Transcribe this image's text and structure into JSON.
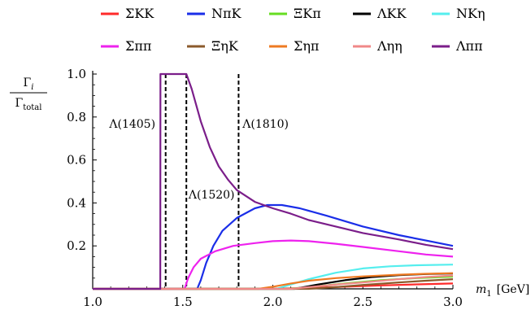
{
  "chart_data": {
    "type": "line",
    "title": "",
    "xlabel": "m_1 [GeV]",
    "xlabel_parts": {
      "var": "m",
      "sub": "1",
      "unit": "[GeV]"
    },
    "ylabel": "Γ_i / Γ_total",
    "ylabel_parts": {
      "num": "Γ",
      "num_sub": "i",
      "den": "Γ",
      "den_sub": "total"
    },
    "xlim": [
      1.0,
      3.0
    ],
    "ylim": [
      0.0,
      1.0
    ],
    "xticks": [
      1.0,
      1.5,
      2.0,
      2.5,
      3.0
    ],
    "xtick_labels": [
      "1.0",
      "1.5",
      "2.0",
      "2.5",
      "3.0"
    ],
    "yticks": [
      0.2,
      0.4,
      0.6,
      0.8,
      1.0
    ],
    "ytick_labels": [
      "0.2",
      "0.4",
      "0.6",
      "0.8",
      "1.0"
    ],
    "grid": false,
    "legend_placement": "top",
    "vlines": [
      {
        "x": 1.405,
        "style": "dashed",
        "color": "#000000"
      },
      {
        "x": 1.52,
        "style": "dashed",
        "color": "#000000"
      },
      {
        "x": 1.81,
        "style": "dashed",
        "color": "#000000"
      }
    ],
    "annotations": [
      {
        "text": "Λ(1405)",
        "x": 1.22,
        "y": 0.75
      },
      {
        "text": "Λ(1810)",
        "x": 1.96,
        "y": 0.75
      },
      {
        "text": "Λ(1520)",
        "x": 1.66,
        "y": 0.42
      }
    ],
    "series": [
      {
        "name": "ΣKK",
        "color": "#ff2a2a",
        "x": [
          1.0,
          2.0,
          2.2,
          2.4,
          2.6,
          2.8,
          3.0
        ],
        "y": [
          0,
          0,
          0.004,
          0.01,
          0.016,
          0.021,
          0.025
        ]
      },
      {
        "name": "NπK",
        "color": "#1a2ee8",
        "x": [
          1.0,
          1.58,
          1.6,
          1.63,
          1.67,
          1.72,
          1.8,
          1.9,
          1.97,
          2.05,
          2.15,
          2.3,
          2.5,
          2.7,
          2.85,
          3.0
        ],
        "y": [
          0,
          0,
          0.04,
          0.12,
          0.2,
          0.27,
          0.33,
          0.375,
          0.39,
          0.39,
          0.375,
          0.34,
          0.29,
          0.25,
          0.225,
          0.2
        ]
      },
      {
        "name": "ΞKπ",
        "color": "#66dd22",
        "x": [
          1.0,
          2.08,
          2.2,
          2.4,
          2.6,
          2.8,
          3.0
        ],
        "y": [
          0,
          0,
          0.008,
          0.025,
          0.04,
          0.05,
          0.057
        ]
      },
      {
        "name": "ΛKK",
        "color": "#000000",
        "x": [
          1.0,
          2.12,
          2.25,
          2.4,
          2.55,
          2.7,
          2.85,
          3.0
        ],
        "y": [
          0,
          0,
          0.02,
          0.04,
          0.055,
          0.064,
          0.069,
          0.072
        ]
      },
      {
        "name": "NKη",
        "color": "#55eeee",
        "x": [
          1.0,
          2.02,
          2.1,
          2.2,
          2.35,
          2.5,
          2.65,
          2.8,
          3.0
        ],
        "y": [
          0,
          0,
          0.02,
          0.045,
          0.075,
          0.095,
          0.105,
          0.11,
          0.113
        ]
      },
      {
        "name": "Σππ",
        "color": "#ee22ee",
        "x": [
          1.0,
          1.51,
          1.53,
          1.56,
          1.6,
          1.68,
          1.78,
          1.9,
          2.0,
          2.1,
          2.2,
          2.35,
          2.5,
          2.7,
          2.85,
          3.0
        ],
        "y": [
          0,
          0,
          0.05,
          0.1,
          0.14,
          0.175,
          0.2,
          0.213,
          0.222,
          0.225,
          0.222,
          0.21,
          0.195,
          0.175,
          0.16,
          0.15
        ]
      },
      {
        "name": "ΞηK",
        "color": "#8b5a2b",
        "x": [
          1.0,
          2.2,
          2.35,
          2.5,
          2.7,
          2.85,
          3.0
        ],
        "y": [
          0,
          0,
          0.008,
          0.018,
          0.03,
          0.038,
          0.045
        ]
      },
      {
        "name": "Σηπ",
        "color": "#ee7a22",
        "x": [
          1.0,
          1.92,
          2.0,
          2.1,
          2.2,
          2.35,
          2.5,
          2.7,
          2.85,
          3.0
        ],
        "y": [
          0,
          0,
          0.01,
          0.025,
          0.038,
          0.05,
          0.058,
          0.066,
          0.07,
          0.073
        ]
      },
      {
        "name": "Ληη",
        "color": "#f08888",
        "x": [
          1.0,
          2.1,
          2.2,
          2.35,
          2.5,
          2.7,
          2.85,
          3.0
        ],
        "y": [
          0,
          0,
          0.008,
          0.02,
          0.03,
          0.045,
          0.055,
          0.062
        ]
      },
      {
        "name": "Λππ",
        "color": "#7b1e8a",
        "x": [
          1.0,
          1.375,
          1.376,
          1.43,
          1.44,
          1.46,
          1.48,
          1.5,
          1.52,
          1.55,
          1.6,
          1.65,
          1.7,
          1.75,
          1.8,
          1.9,
          2.0,
          2.1,
          2.2,
          2.35,
          2.5,
          2.7,
          2.85,
          3.0
        ],
        "y": [
          0,
          0,
          1.0,
          1.0,
          1.0,
          1.0,
          1.0,
          1.0,
          1.0,
          0.93,
          0.78,
          0.66,
          0.57,
          0.51,
          0.46,
          0.405,
          0.375,
          0.35,
          0.32,
          0.29,
          0.26,
          0.23,
          0.205,
          0.185
        ]
      }
    ]
  }
}
